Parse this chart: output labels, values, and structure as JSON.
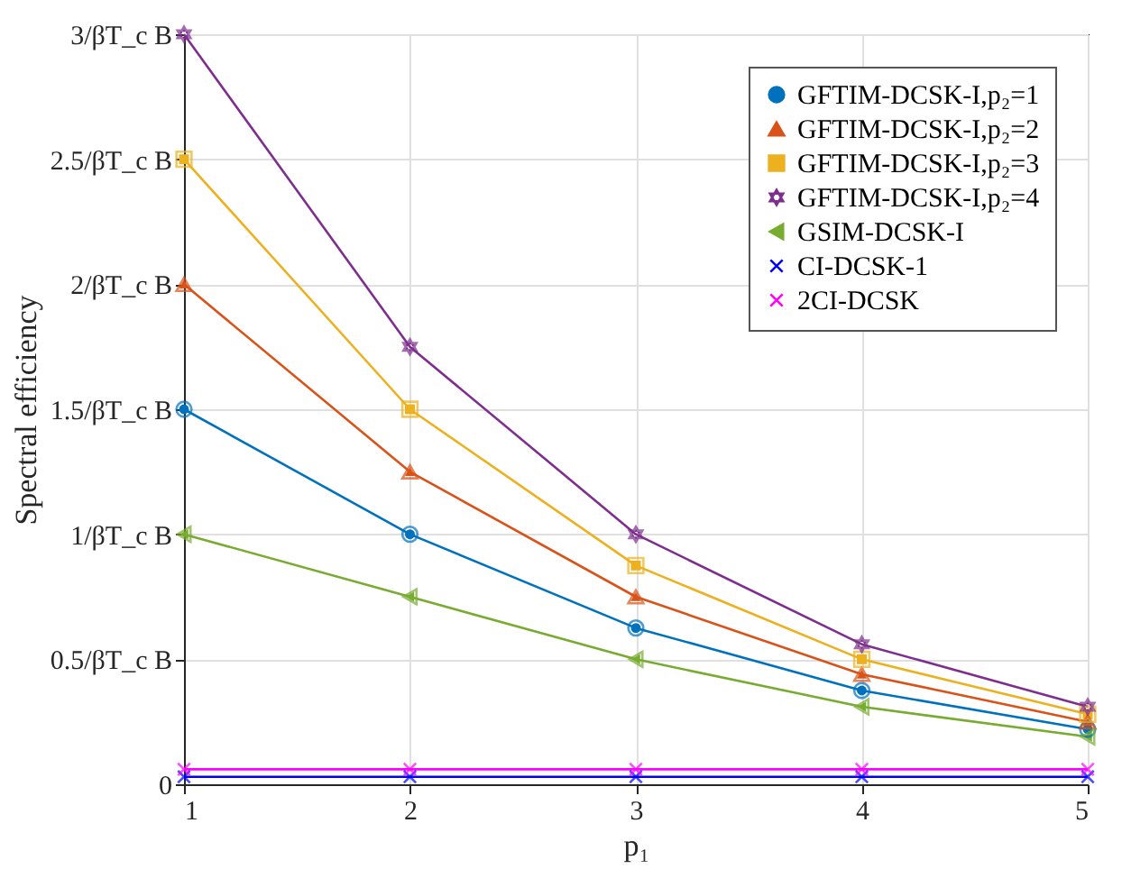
{
  "chart_data": {
    "type": "line",
    "xlabel": "p₁",
    "ylabel": "Spectral efficiency",
    "x": [
      1,
      2,
      3,
      4,
      5
    ],
    "xlim": [
      1,
      5
    ],
    "xticks": [
      1,
      2,
      3,
      4,
      5
    ],
    "ylim": [
      0,
      3
    ],
    "yticks": [
      0,
      {
        "value": 0.5,
        "label": "0.5/βT_c B"
      },
      {
        "value": 1,
        "label": "1/βT_c B"
      },
      {
        "value": 1.5,
        "label": "1.5/βT_c B"
      },
      {
        "value": 2,
        "label": "2/βT_c B"
      },
      {
        "value": 2.5,
        "label": "2.5/βT_c B"
      },
      {
        "value": 3,
        "label": "3/βT_c B"
      }
    ],
    "grid": true,
    "legend": "top right",
    "line_style": "solid",
    "series": [
      {
        "name": "GFTIM-DCSK-I,p₂=1",
        "color": "#0072bd",
        "marker": "circle",
        "values": [
          1.5,
          1.0,
          0.625,
          0.375,
          0.22
        ]
      },
      {
        "name": "GFTIM-DCSK-I,p₂=2",
        "color": "#d95319",
        "marker": "triangle",
        "values": [
          2.0,
          1.25,
          0.75,
          0.44,
          0.25
        ]
      },
      {
        "name": "GFTIM-DCSK-I,p₂=3",
        "color": "#edb120",
        "marker": "square",
        "values": [
          2.5,
          1.5,
          0.875,
          0.5,
          0.28
        ]
      },
      {
        "name": "GFTIM-DCSK-I,p₂=4",
        "color": "#7e2f8e",
        "marker": "star",
        "values": [
          3.0,
          1.75,
          1.0,
          0.56,
          0.31
        ]
      },
      {
        "name": "GSIM-DCSK-I",
        "color": "#77ac30",
        "marker": "triangle-left",
        "values": [
          1.0,
          0.75,
          0.5,
          0.31,
          0.19
        ]
      },
      {
        "name": "CI-DCSK-1",
        "color": "#0000ff",
        "marker": "cross",
        "values": [
          0.03,
          0.03,
          0.03,
          0.03,
          0.03
        ]
      },
      {
        "name": "2CI-DCSK",
        "color": "#ff00ff",
        "marker": "cross",
        "values": [
          0.06,
          0.06,
          0.06,
          0.06,
          0.06
        ]
      }
    ]
  }
}
